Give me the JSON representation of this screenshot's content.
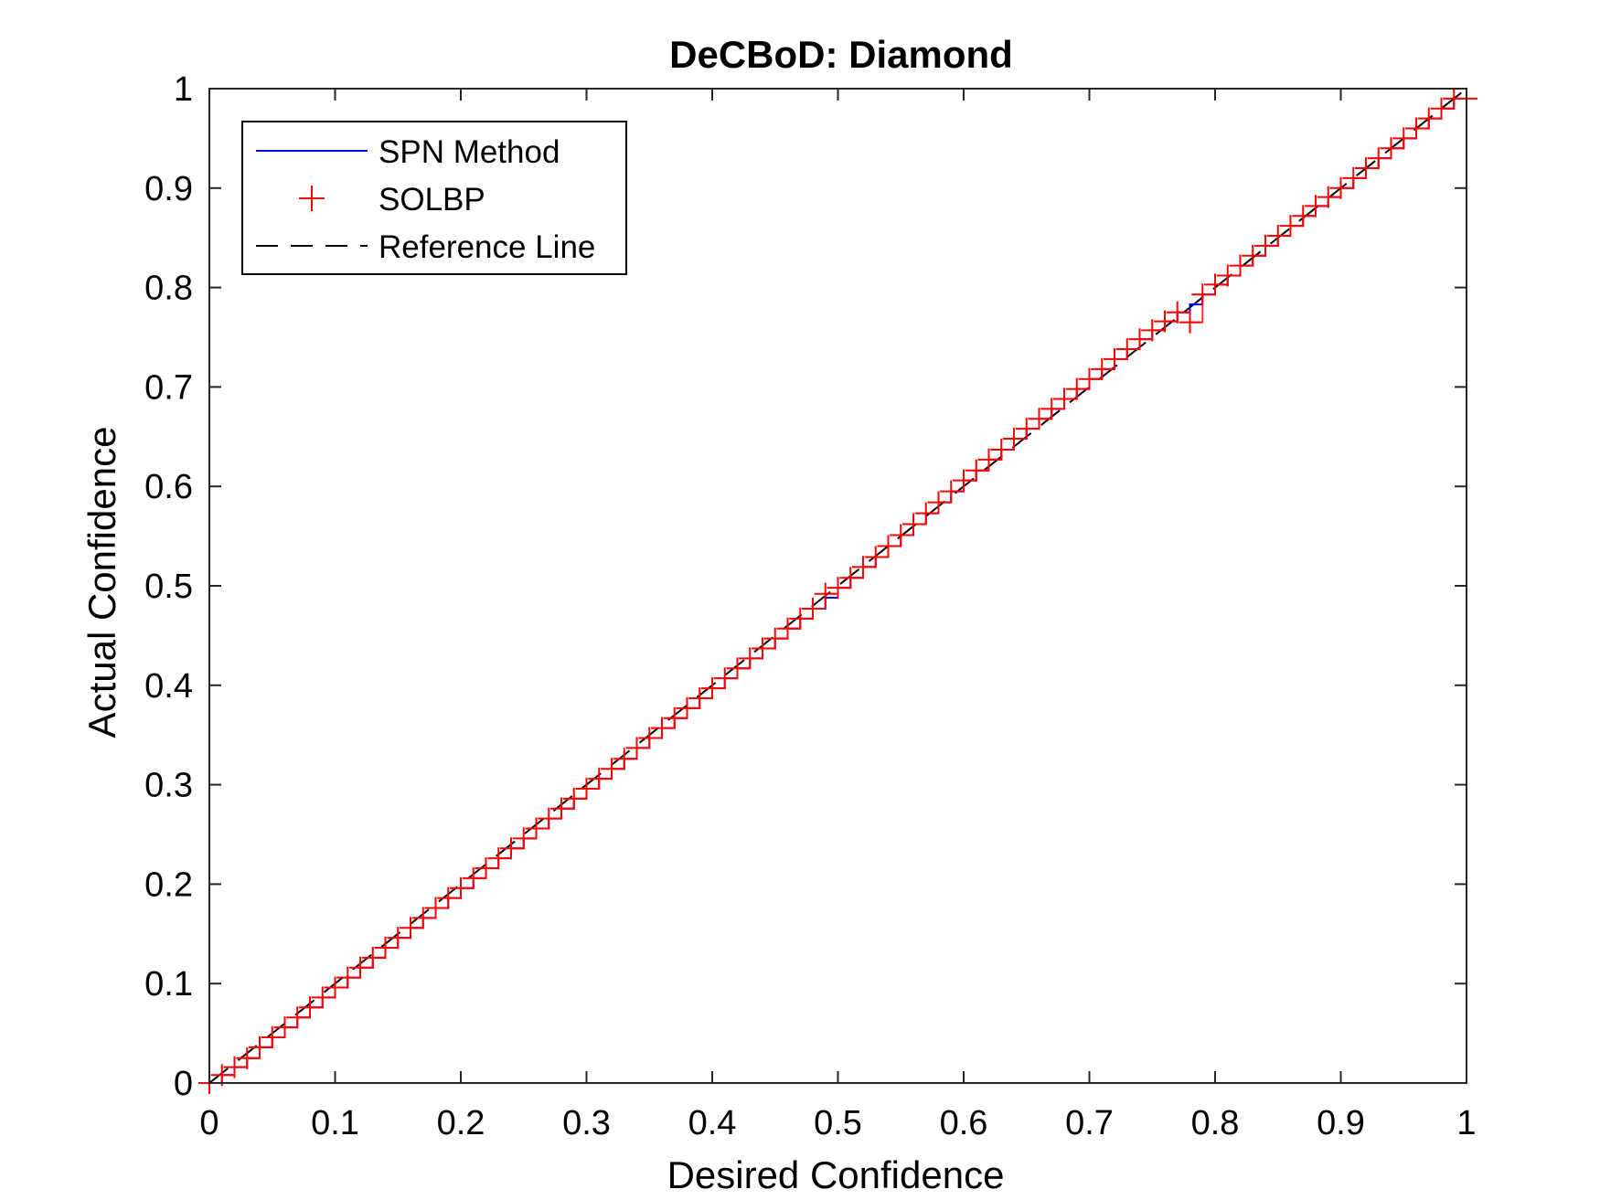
{
  "chart_data": {
    "type": "line",
    "title": "DeCBoD: Diamond",
    "xlabel": "Desired Confidence",
    "ylabel": "Actual Confidence",
    "xlim": [
      0,
      1
    ],
    "ylim": [
      0,
      1
    ],
    "xticks": [
      "0",
      "0.1",
      "0.2",
      "0.3",
      "0.4",
      "0.5",
      "0.6",
      "0.7",
      "0.8",
      "0.9",
      "1"
    ],
    "yticks": [
      "0",
      "0.1",
      "0.2",
      "0.3",
      "0.4",
      "0.5",
      "0.6",
      "0.7",
      "0.8",
      "0.9",
      "1"
    ],
    "grid": false,
    "legend_position": "top-left",
    "series": [
      {
        "name": "SPN Method",
        "style": "solid line",
        "color": "#0000ff",
        "x": [
          0,
          0.01,
          0.02,
          0.03,
          0.04,
          0.05,
          0.06,
          0.07,
          0.08,
          0.09,
          0.1,
          0.11,
          0.12,
          0.13,
          0.14,
          0.15,
          0.16,
          0.17,
          0.18,
          0.19,
          0.2,
          0.21,
          0.22,
          0.23,
          0.24,
          0.25,
          0.26,
          0.27,
          0.28,
          0.29,
          0.3,
          0.31,
          0.32,
          0.33,
          0.34,
          0.35,
          0.36,
          0.37,
          0.38,
          0.39,
          0.4,
          0.41,
          0.42,
          0.43,
          0.44,
          0.45,
          0.46,
          0.47,
          0.48,
          0.49,
          0.5,
          0.51,
          0.52,
          0.53,
          0.54,
          0.55,
          0.56,
          0.57,
          0.58,
          0.59,
          0.6,
          0.61,
          0.62,
          0.63,
          0.64,
          0.65,
          0.66,
          0.67,
          0.68,
          0.69,
          0.7,
          0.71,
          0.72,
          0.73,
          0.74,
          0.75,
          0.76,
          0.77,
          0.78,
          0.79,
          0.8,
          0.81,
          0.82,
          0.83,
          0.84,
          0.85,
          0.86,
          0.87,
          0.88,
          0.89,
          0.9,
          0.91,
          0.92,
          0.93,
          0.94,
          0.95,
          0.96,
          0.97,
          0.98,
          0.99
        ],
        "y": [
          0.0,
          0.008,
          0.016,
          0.025,
          0.036,
          0.046,
          0.056,
          0.066,
          0.076,
          0.086,
          0.096,
          0.106,
          0.116,
          0.126,
          0.136,
          0.146,
          0.156,
          0.166,
          0.176,
          0.186,
          0.196,
          0.206,
          0.216,
          0.226,
          0.236,
          0.246,
          0.256,
          0.266,
          0.276,
          0.286,
          0.296,
          0.306,
          0.316,
          0.326,
          0.337,
          0.347,
          0.357,
          0.367,
          0.377,
          0.387,
          0.397,
          0.407,
          0.417,
          0.427,
          0.437,
          0.447,
          0.457,
          0.467,
          0.477,
          0.488,
          0.498,
          0.508,
          0.519,
          0.529,
          0.54,
          0.551,
          0.562,
          0.573,
          0.584,
          0.595,
          0.606,
          0.616,
          0.627,
          0.637,
          0.648,
          0.658,
          0.668,
          0.678,
          0.688,
          0.698,
          0.708,
          0.718,
          0.728,
          0.738,
          0.748,
          0.757,
          0.766,
          0.775,
          0.783,
          0.793,
          0.803,
          0.812,
          0.822,
          0.832,
          0.842,
          0.852,
          0.862,
          0.872,
          0.882,
          0.891,
          0.9,
          0.91,
          0.92,
          0.93,
          0.94,
          0.95,
          0.96,
          0.97,
          0.98,
          0.99
        ]
      },
      {
        "name": "SOLBP",
        "style": "plus markers",
        "color": "#ff0000",
        "x": [
          0,
          0.01,
          0.02,
          0.03,
          0.04,
          0.05,
          0.06,
          0.07,
          0.08,
          0.09,
          0.1,
          0.11,
          0.12,
          0.13,
          0.14,
          0.15,
          0.16,
          0.17,
          0.18,
          0.19,
          0.2,
          0.21,
          0.22,
          0.23,
          0.24,
          0.25,
          0.26,
          0.27,
          0.28,
          0.29,
          0.3,
          0.31,
          0.32,
          0.33,
          0.34,
          0.35,
          0.36,
          0.37,
          0.38,
          0.39,
          0.4,
          0.41,
          0.42,
          0.43,
          0.44,
          0.45,
          0.46,
          0.47,
          0.48,
          0.49,
          0.5,
          0.51,
          0.52,
          0.53,
          0.54,
          0.55,
          0.56,
          0.57,
          0.58,
          0.59,
          0.6,
          0.61,
          0.62,
          0.63,
          0.64,
          0.65,
          0.66,
          0.67,
          0.68,
          0.69,
          0.7,
          0.71,
          0.72,
          0.73,
          0.74,
          0.75,
          0.76,
          0.77,
          0.78,
          0.79,
          0.8,
          0.81,
          0.82,
          0.83,
          0.84,
          0.85,
          0.86,
          0.87,
          0.88,
          0.89,
          0.9,
          0.91,
          0.92,
          0.93,
          0.94,
          0.95,
          0.96,
          0.97,
          0.98,
          0.99,
          1.0
        ],
        "y": [
          0.0,
          0.008,
          0.016,
          0.025,
          0.036,
          0.046,
          0.056,
          0.066,
          0.076,
          0.086,
          0.096,
          0.106,
          0.116,
          0.126,
          0.136,
          0.146,
          0.156,
          0.166,
          0.176,
          0.186,
          0.196,
          0.206,
          0.216,
          0.226,
          0.236,
          0.246,
          0.256,
          0.266,
          0.276,
          0.286,
          0.296,
          0.306,
          0.316,
          0.326,
          0.337,
          0.347,
          0.357,
          0.367,
          0.377,
          0.387,
          0.397,
          0.407,
          0.417,
          0.427,
          0.437,
          0.447,
          0.457,
          0.467,
          0.477,
          0.492,
          0.498,
          0.508,
          0.519,
          0.529,
          0.54,
          0.551,
          0.562,
          0.573,
          0.584,
          0.595,
          0.606,
          0.616,
          0.627,
          0.637,
          0.648,
          0.658,
          0.668,
          0.678,
          0.688,
          0.698,
          0.708,
          0.718,
          0.728,
          0.738,
          0.748,
          0.757,
          0.766,
          0.775,
          0.765,
          0.793,
          0.803,
          0.812,
          0.822,
          0.832,
          0.842,
          0.852,
          0.862,
          0.872,
          0.882,
          0.891,
          0.9,
          0.91,
          0.92,
          0.93,
          0.94,
          0.95,
          0.96,
          0.97,
          0.98,
          0.99,
          0.99
        ]
      },
      {
        "name": "Reference Line",
        "style": "dashed line",
        "color": "#000000",
        "x": [
          0,
          1
        ],
        "y": [
          0,
          1
        ]
      }
    ]
  }
}
